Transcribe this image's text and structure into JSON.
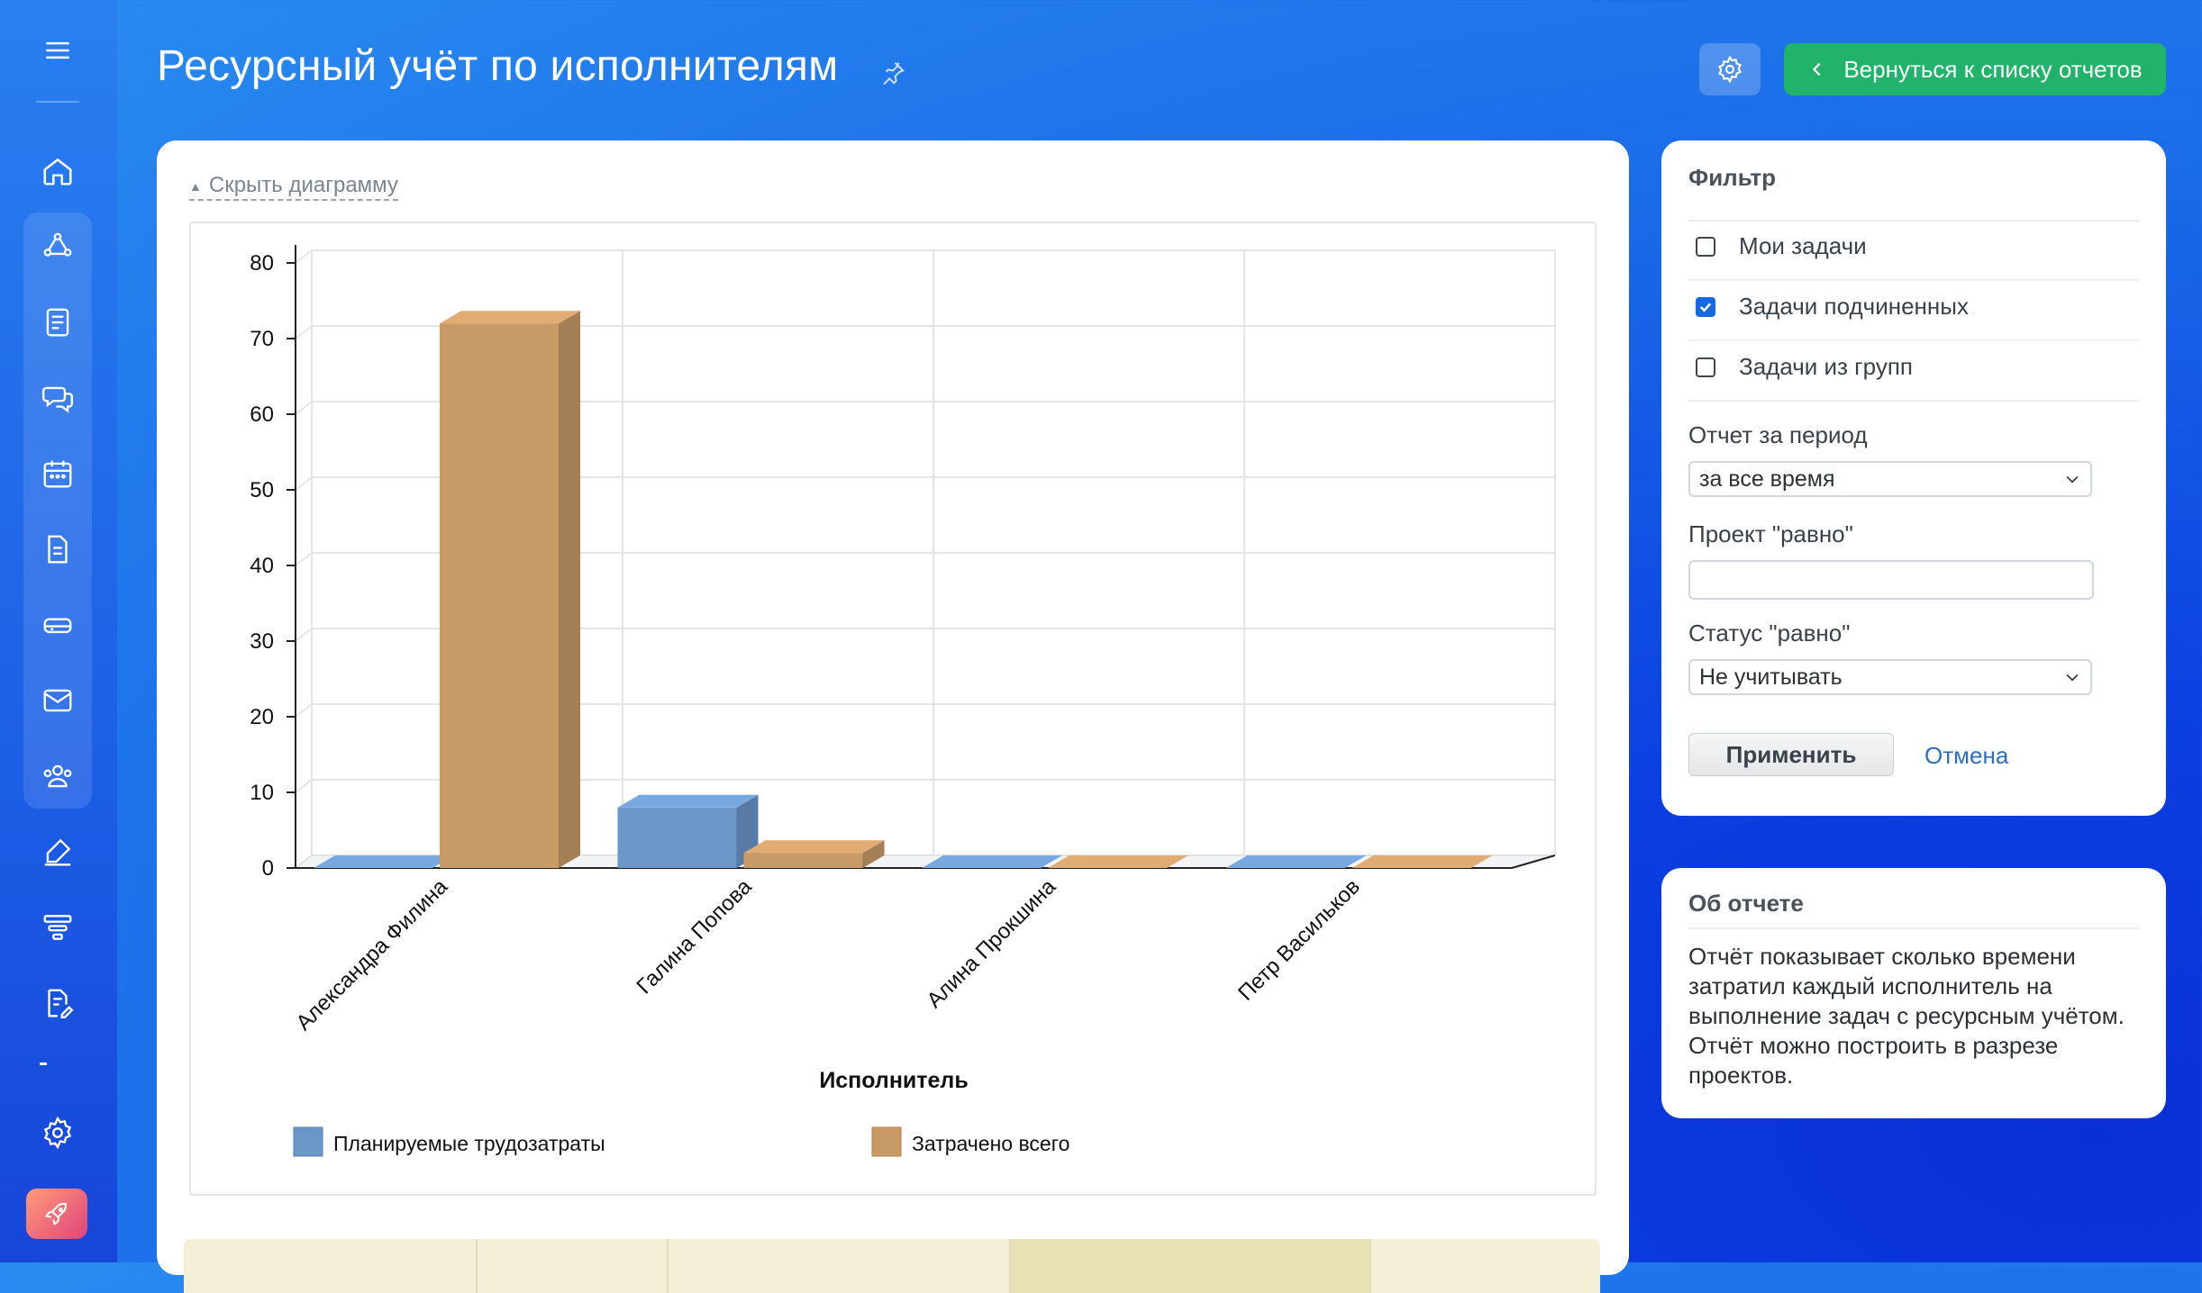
{
  "page": {
    "title": "Ресурсный учёт по исполнителям"
  },
  "header": {
    "back_label": "Вернуться к списку отчетов"
  },
  "sidebar": {
    "items": [
      {
        "icon": "menu-icon"
      },
      {
        "icon": "home-icon"
      },
      {
        "icon": "nodes-icon"
      },
      {
        "icon": "tasks-icon"
      },
      {
        "icon": "chat-icon"
      },
      {
        "icon": "calendar-icon"
      },
      {
        "icon": "document-icon"
      },
      {
        "icon": "drive-icon"
      },
      {
        "icon": "mail-icon"
      },
      {
        "icon": "team-icon"
      },
      {
        "icon": "sign-icon"
      },
      {
        "icon": "funnel-icon"
      },
      {
        "icon": "edit-doc-icon"
      },
      {
        "icon": "settings-icon"
      },
      {
        "icon": "rocket-icon"
      }
    ]
  },
  "report": {
    "hide_chart_label": "Скрыть диаграмму"
  },
  "chart_data": {
    "type": "bar",
    "categories": [
      "Александра Филина",
      "Галина Попова",
      "Алина Прокшина",
      "Петр Васильков"
    ],
    "series": [
      {
        "name": "Планируемые трудозатраты",
        "values": [
          0,
          8,
          0,
          0
        ],
        "color": "#6a96c8"
      },
      {
        "name": "Затрачено всего",
        "values": [
          72,
          2,
          0,
          0
        ],
        "color": "#c89a68"
      }
    ],
    "xlabel": "Исполнитель",
    "ylabel": "",
    "ylim": [
      0,
      80
    ],
    "yticks": [
      0,
      10,
      20,
      30,
      40,
      50,
      60,
      70,
      80
    ],
    "grid": true,
    "bar_style": "3d",
    "legend_position": "bottom"
  },
  "filter": {
    "title": "Фильтр",
    "checkboxes": [
      {
        "label": "Мои задачи",
        "checked": false
      },
      {
        "label": "Задачи подчиненных",
        "checked": true
      },
      {
        "label": "Задачи из групп",
        "checked": false
      }
    ],
    "period_label": "Отчет за период",
    "period_value": "за все время",
    "project_label": "Проект \"равно\"",
    "project_value": "",
    "status_label": "Статус \"равно\"",
    "status_value": "Не учитывать",
    "apply_label": "Применить",
    "cancel_label": "Отмена"
  },
  "about": {
    "title": "Об отчете",
    "text": "Отчёт показывает сколько времени затратил каждый исполнитель на выполнение задач с ресурсным учётом. Отчёт можно построить в разрезе проектов."
  },
  "colors": {
    "accent": "#21b36a",
    "link": "#2f6fbf",
    "checkbox": "#1769e0"
  }
}
